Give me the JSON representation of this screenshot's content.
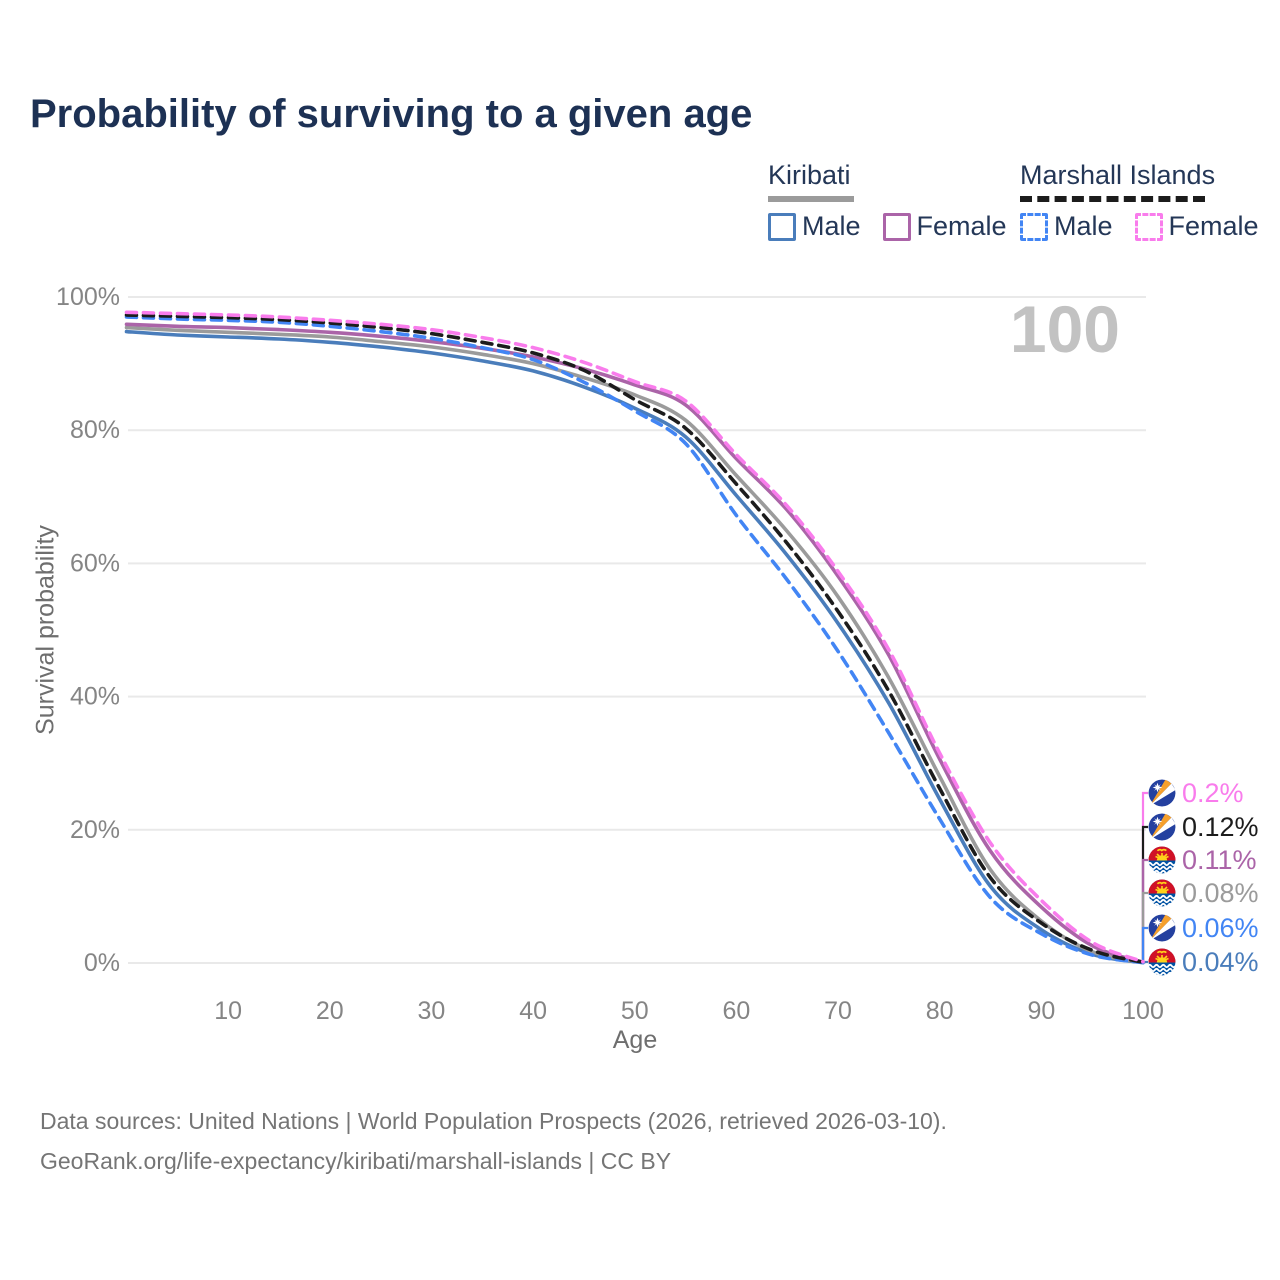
{
  "title": "Probability of surviving to a given age",
  "watermark": "100",
  "legend": {
    "groups": [
      {
        "label": "Kiribati",
        "line_style": "solid",
        "underline_color": "#9b9b9b",
        "items": [
          {
            "label": "Male",
            "color": "#4a7dbb",
            "dashed": false
          },
          {
            "label": "Female",
            "color": "#ab64a8",
            "dashed": false
          }
        ]
      },
      {
        "label": "Marshall Islands",
        "line_style": "dashed",
        "underline_color": "#1c1c1c",
        "items": [
          {
            "label": "Male",
            "color": "#4285f4",
            "dashed": true
          },
          {
            "label": "Female",
            "color": "#f97cec",
            "dashed": true
          }
        ]
      }
    ]
  },
  "chart_data": {
    "type": "line",
    "title": "Probability of surviving to a given age",
    "xlabel": "Age",
    "ylabel": "Survival probability",
    "xlim": [
      0,
      100
    ],
    "ylim": [
      0,
      100
    ],
    "grid": true,
    "x_ticks": [
      "10",
      "20",
      "30",
      "40",
      "50",
      "60",
      "70",
      "80",
      "90",
      "100"
    ],
    "x_tick_values": [
      10,
      20,
      30,
      40,
      50,
      60,
      70,
      80,
      90,
      100
    ],
    "y_ticks": [
      "0%",
      "20%",
      "40%",
      "60%",
      "80%",
      "100%"
    ],
    "y_tick_values": [
      0,
      20,
      40,
      60,
      80,
      100
    ],
    "hover_age": "100",
    "ages": [
      0,
      5,
      10,
      15,
      20,
      25,
      30,
      35,
      40,
      45,
      50,
      55,
      60,
      65,
      70,
      75,
      80,
      85,
      90,
      95,
      100
    ],
    "series": [
      {
        "name": "Kiribati Male",
        "country": "Kiribati",
        "sex": "Male",
        "color": "#4a7dbb",
        "dashed": false,
        "flag": "kiribati",
        "end_label": "0.04%",
        "values": [
          94.8,
          94.3,
          94.0,
          93.7,
          93.2,
          92.5,
          91.6,
          90.4,
          88.9,
          86.5,
          83.3,
          79.0,
          70.2,
          61.2,
          51.0,
          39.0,
          24.6,
          11.5,
          5.0,
          1.3,
          0.04
        ]
      },
      {
        "name": "Kiribati",
        "country": "Kiribati",
        "sex": "Both",
        "color": "#9b9b9b",
        "dashed": false,
        "flag": "kiribati",
        "end_label": "0.08%",
        "values": [
          95.4,
          95.0,
          94.7,
          94.4,
          94.0,
          93.3,
          92.5,
          91.4,
          90.0,
          87.9,
          85.3,
          81.5,
          73.2,
          64.8,
          55.0,
          42.8,
          28.0,
          14.0,
          6.3,
          1.7,
          0.08
        ]
      },
      {
        "name": "Kiribati Female",
        "country": "Kiribati",
        "sex": "Female",
        "color": "#ab64a8",
        "dashed": false,
        "flag": "kiribati",
        "end_label": "0.11%",
        "values": [
          95.9,
          95.6,
          95.4,
          95.1,
          94.7,
          94.1,
          93.3,
          92.3,
          91.0,
          89.2,
          86.8,
          83.8,
          75.7,
          68.0,
          58.1,
          46.2,
          30.6,
          16.8,
          8.4,
          2.6,
          0.11
        ]
      },
      {
        "name": "Marshall Islands Male",
        "country": "Marshall Islands",
        "sex": "Male",
        "color": "#4285f4",
        "dashed": true,
        "flag": "marshall-islands",
        "end_label": "0.06%",
        "values": [
          97.0,
          96.7,
          96.5,
          96.2,
          95.6,
          94.8,
          93.8,
          92.4,
          90.6,
          87.2,
          82.9,
          78.0,
          67.2,
          57.5,
          46.8,
          34.5,
          21.6,
          9.8,
          4.4,
          1.2,
          0.06
        ]
      },
      {
        "name": "Marshall Islands",
        "country": "Marshall Islands",
        "sex": "Both",
        "color": "#1c1c1c",
        "dashed": true,
        "flag": "marshall-islands",
        "end_label": "0.12%",
        "values": [
          97.3,
          97.1,
          96.9,
          96.6,
          96.1,
          95.4,
          94.5,
          93.2,
          91.6,
          89.0,
          84.6,
          80.3,
          71.9,
          63.0,
          52.8,
          40.8,
          26.2,
          12.8,
          6.0,
          1.9,
          0.12
        ]
      },
      {
        "name": "Marshall Islands Female",
        "country": "Marshall Islands",
        "sex": "Female",
        "color": "#f97cec",
        "dashed": true,
        "flag": "marshall-islands",
        "end_label": "0.2%",
        "values": [
          97.7,
          97.5,
          97.3,
          97.0,
          96.5,
          95.9,
          95.1,
          93.9,
          92.4,
          90.2,
          87.3,
          84.4,
          76.3,
          68.6,
          58.8,
          47.0,
          31.5,
          18.0,
          9.4,
          3.1,
          0.2
        ]
      }
    ],
    "end_label_order": [
      "Marshall Islands Female",
      "Marshall Islands",
      "Kiribati Female",
      "Kiribati",
      "Marshall Islands Male",
      "Kiribati Male"
    ]
  },
  "footer": {
    "line1": "Data sources: United Nations | World Population Prospects (2026, retrieved 2026-03-10).",
    "line2": "GeoRank.org/life-expectancy/kiribati/marshall-islands | CC BY"
  }
}
